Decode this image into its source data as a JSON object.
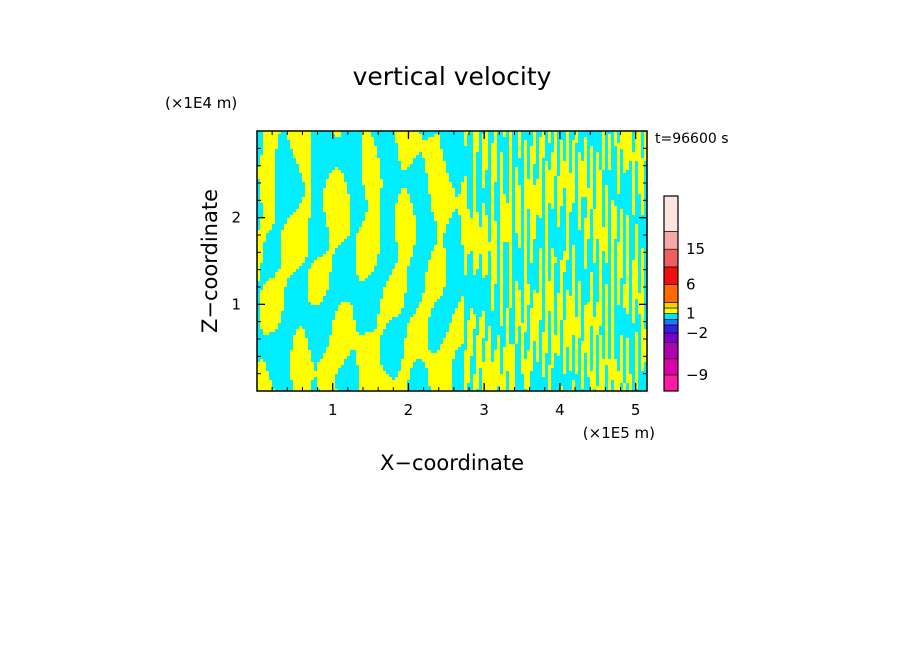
{
  "chart_data": {
    "type": "heatmap",
    "title": "vertical velocity",
    "xlabel": "X−coordinate",
    "ylabel": "Z−coordinate",
    "x_unit_label": "(×1E5 m)",
    "y_unit_label": "(×1E4 m)",
    "time_label": "t=96600 s",
    "xlim": [
      0,
      5.15
    ],
    "ylim": [
      0,
      3.0
    ],
    "x_ticks": [
      1,
      2,
      3,
      4,
      5
    ],
    "x_tick_labels": [
      "1",
      "2",
      "3",
      "4",
      "5"
    ],
    "y_ticks": [
      1,
      2
    ],
    "y_tick_labels": [
      "1",
      "2"
    ],
    "field_colors": {
      "positive": "#ffff00",
      "negative": "#00eeff"
    },
    "colorbar": {
      "levels": [
        -12,
        -9,
        -6,
        -4,
        -2,
        -1,
        0,
        1,
        2,
        4,
        6,
        10,
        15,
        20,
        25
      ],
      "colors": [
        "#ff1aa3",
        "#dd00aa",
        "#b000b0",
        "#7a00cc",
        "#3322dd",
        "#1e78ff",
        "#00e5ff",
        "#fffe00",
        "#ffd000",
        "#ff6a00",
        "#f01010",
        "#ee6060",
        "#f5a8a8",
        "#fde4de"
      ],
      "tick_values": [
        15,
        6,
        1,
        -2,
        -9
      ],
      "tick_labels": [
        "15",
        "6",
        "1",
        "−2",
        "−9"
      ]
    }
  }
}
